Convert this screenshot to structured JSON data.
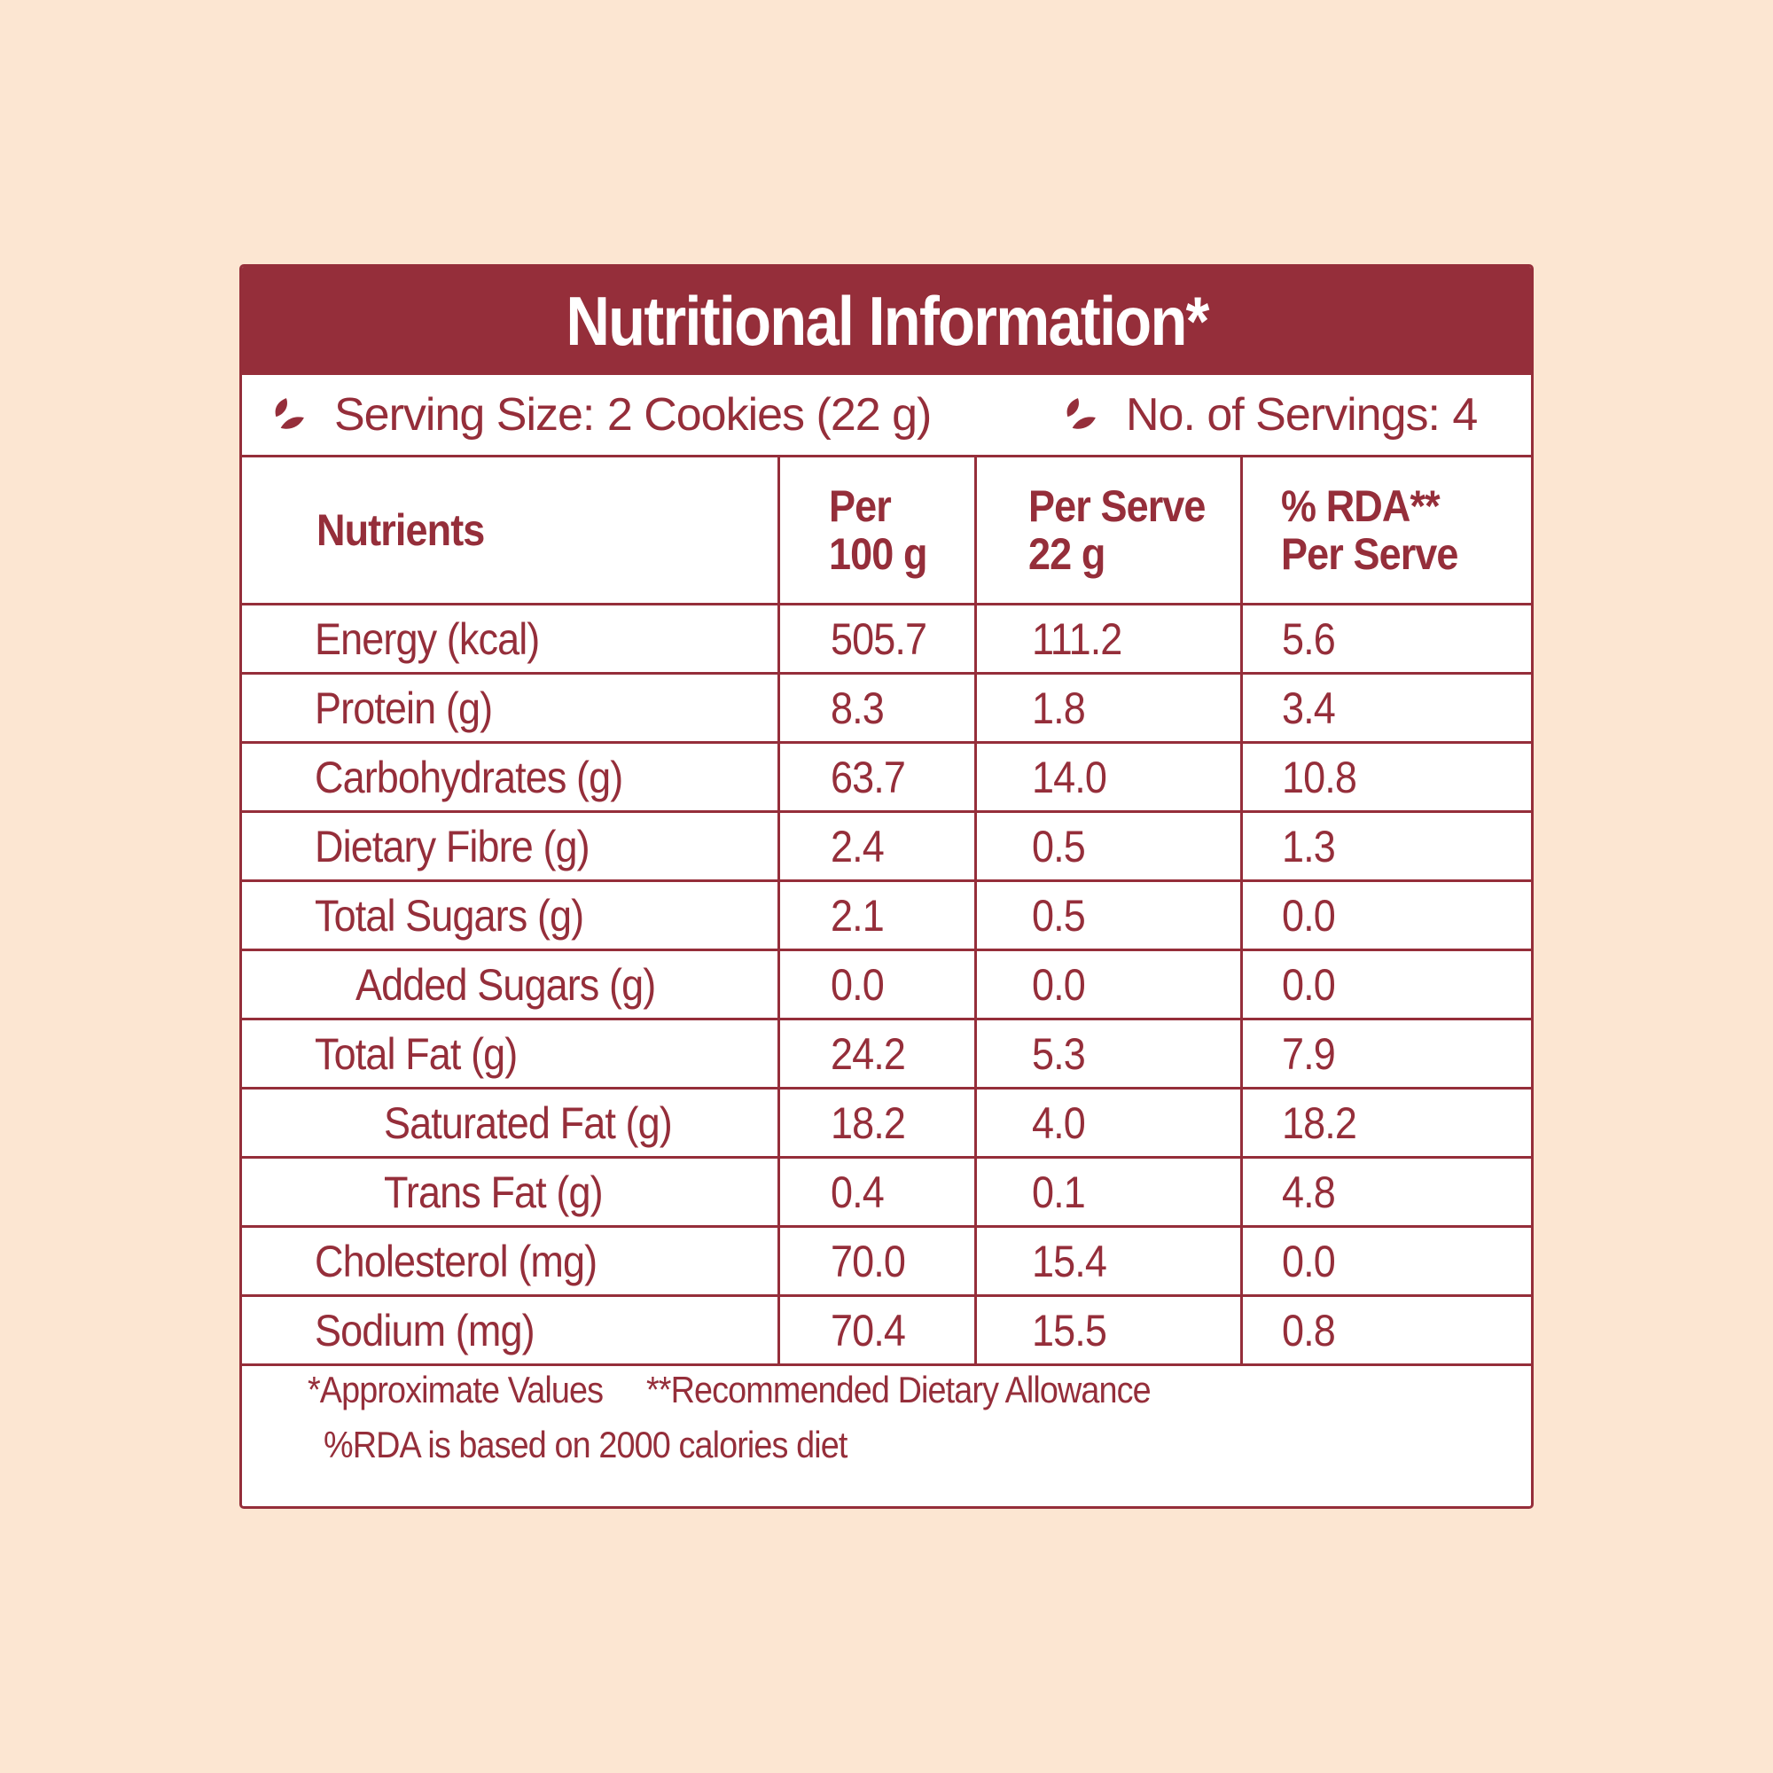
{
  "title": "Nutritional Information*",
  "serving": {
    "size_label": "Serving Size:",
    "size_value": "2 Cookies (22 g)",
    "count_label": "No. of Servings:",
    "count_value": "4"
  },
  "colors": {
    "accent": "#952e3a",
    "background": "#fce6d2",
    "panel": "#ffffff"
  },
  "icons": {
    "serving_size": "leaf-icon",
    "servings_count": "leaf-icon"
  },
  "table": {
    "headers": [
      {
        "line1": "Nutrients",
        "line2": ""
      },
      {
        "line1": "Per",
        "line2": "100 g"
      },
      {
        "line1": "Per Serve",
        "line2": "22 g"
      },
      {
        "line1": "% RDA**",
        "line2": "Per Serve"
      }
    ],
    "rows": [
      {
        "nutrient": "Energy (kcal)",
        "per_100g": "505.7",
        "per_serve": "111.2",
        "rda": "5.6"
      },
      {
        "nutrient": "Protein (g)",
        "per_100g": "8.3",
        "per_serve": "1.8",
        "rda": "3.4"
      },
      {
        "nutrient": "Carbohydrates (g)",
        "per_100g": "63.7",
        "per_serve": "14.0",
        "rda": "10.8"
      },
      {
        "nutrient": "Dietary Fibre (g)",
        "per_100g": "2.4",
        "per_serve": "0.5",
        "rda": "1.3"
      },
      {
        "nutrient": "Total Sugars (g)",
        "per_100g": "2.1",
        "per_serve": "0.5",
        "rda": "0.0"
      },
      {
        "nutrient": "Added Sugars (g)",
        "per_100g": "0.0",
        "per_serve": "0.0",
        "rda": "0.0"
      },
      {
        "nutrient": "Total Fat (g)",
        "per_100g": "24.2",
        "per_serve": "5.3",
        "rda": "7.9"
      },
      {
        "nutrient": "Saturated Fat (g)",
        "per_100g": "18.2",
        "per_serve": "4.0",
        "rda": "18.2"
      },
      {
        "nutrient": "Trans Fat (g)",
        "per_100g": "0.4",
        "per_serve": "0.1",
        "rda": "4.8"
      },
      {
        "nutrient": "Cholesterol (mg)",
        "per_100g": "70.0",
        "per_serve": "15.4",
        "rda": "0.0"
      },
      {
        "nutrient": "Sodium (mg)",
        "per_100g": "70.4",
        "per_serve": "15.5",
        "rda": "0.8"
      }
    ]
  },
  "footnotes": {
    "approximate": "*Approximate Values",
    "rda": "**Recommended Dietary Allowance",
    "basis": "%RDA is based on 2000 calories diet"
  }
}
